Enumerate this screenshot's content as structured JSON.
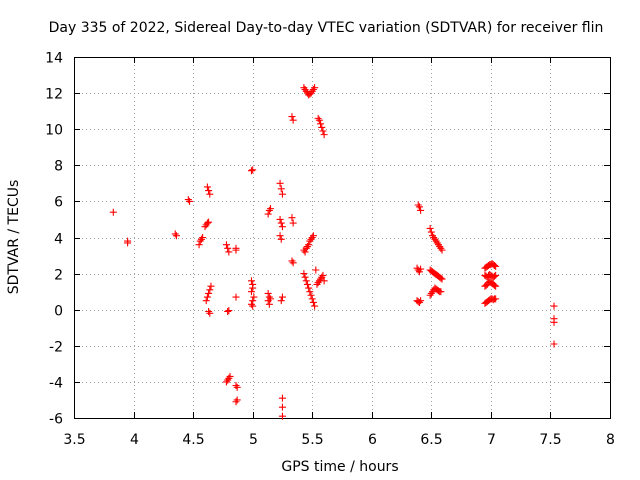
{
  "chart_data": {
    "type": "scatter",
    "title": "Day 335 of 2022, Sidereal Day-to-day VTEC variation (SDTVAR) for receiver flin",
    "xlabel": "GPS time / hours",
    "ylabel": "SDTVAR / TECUs",
    "xlim": [
      3.5,
      8
    ],
    "ylim": [
      -6,
      14
    ],
    "xticks": [
      3.5,
      4,
      4.5,
      5,
      5.5,
      6,
      6.5,
      7,
      7.5,
      8
    ],
    "xtick_labels": [
      "3.5",
      "4",
      "4.5",
      "5",
      "5.5",
      "6",
      "6.5",
      "7",
      "7.5",
      "8"
    ],
    "yticks": [
      -6,
      -4,
      -2,
      0,
      2,
      4,
      6,
      8,
      10,
      12,
      14
    ],
    "ytick_labels": [
      "-6",
      "-4",
      "-2",
      "0",
      "2",
      "4",
      "6",
      "8",
      "10",
      "12",
      "14"
    ],
    "grid": true,
    "marker": "plus",
    "color": "#ff0000",
    "series": [
      {
        "name": "SDTVAR",
        "points": [
          [
            3.83,
            5.4
          ],
          [
            3.95,
            3.8
          ],
          [
            3.95,
            3.7
          ],
          [
            4.35,
            4.2
          ],
          [
            4.36,
            4.1
          ],
          [
            4.46,
            6.1
          ],
          [
            4.47,
            6.0
          ],
          [
            4.55,
            3.6
          ],
          [
            4.56,
            3.8
          ],
          [
            4.57,
            3.9
          ],
          [
            4.58,
            4.0
          ],
          [
            4.6,
            4.6
          ],
          [
            4.61,
            4.7
          ],
          [
            4.62,
            4.8
          ],
          [
            4.63,
            4.85
          ],
          [
            4.62,
            6.8
          ],
          [
            4.63,
            6.6
          ],
          [
            4.64,
            6.4
          ],
          [
            4.61,
            0.5
          ],
          [
            4.62,
            0.7
          ],
          [
            4.63,
            0.9
          ],
          [
            4.64,
            1.1
          ],
          [
            4.65,
            1.3
          ],
          [
            4.63,
            -0.1
          ],
          [
            4.64,
            -0.2
          ],
          [
            4.79,
            -0.1
          ],
          [
            4.8,
            -0.05
          ],
          [
            4.78,
            3.6
          ],
          [
            4.79,
            3.4
          ],
          [
            4.8,
            3.2
          ],
          [
            4.86,
            3.4
          ],
          [
            4.86,
            3.3
          ],
          [
            4.78,
            -4.0
          ],
          [
            4.79,
            -3.9
          ],
          [
            4.8,
            -3.8
          ],
          [
            4.81,
            -3.7
          ],
          [
            4.86,
            -4.2
          ],
          [
            4.87,
            -4.3
          ],
          [
            4.86,
            -5.1
          ],
          [
            4.87,
            -5.0
          ],
          [
            4.86,
            0.7
          ],
          [
            4.99,
            7.7
          ],
          [
            5.0,
            7.75
          ],
          [
            4.99,
            1.6
          ],
          [
            5.0,
            1.4
          ],
          [
            5.0,
            1.2
          ],
          [
            4.99,
            1.0
          ],
          [
            5.01,
            0.7
          ],
          [
            5.0,
            0.5
          ],
          [
            4.99,
            0.3
          ],
          [
            5.0,
            0.2
          ],
          [
            5.13,
            5.3
          ],
          [
            5.14,
            5.5
          ],
          [
            5.15,
            5.6
          ],
          [
            5.13,
            0.9
          ],
          [
            5.14,
            0.7
          ],
          [
            5.13,
            0.5
          ],
          [
            5.14,
            0.3
          ],
          [
            5.15,
            0.6
          ],
          [
            5.23,
            7.0
          ],
          [
            5.24,
            6.7
          ],
          [
            5.25,
            6.4
          ],
          [
            5.23,
            5.0
          ],
          [
            5.24,
            4.8
          ],
          [
            5.25,
            4.6
          ],
          [
            5.23,
            4.1
          ],
          [
            5.24,
            3.9
          ],
          [
            5.24,
            0.5
          ],
          [
            5.25,
            0.7
          ],
          [
            5.25,
            -4.9
          ],
          [
            5.25,
            -5.4
          ],
          [
            5.25,
            -5.9
          ],
          [
            5.33,
            10.7
          ],
          [
            5.34,
            10.5
          ],
          [
            5.33,
            5.1
          ],
          [
            5.34,
            4.8
          ],
          [
            5.33,
            2.7
          ],
          [
            5.34,
            2.6
          ],
          [
            5.43,
            12.3
          ],
          [
            5.44,
            12.2
          ],
          [
            5.45,
            12.1
          ],
          [
            5.46,
            12.0
          ],
          [
            5.47,
            11.9
          ],
          [
            5.48,
            11.95
          ],
          [
            5.49,
            12.0
          ],
          [
            5.5,
            12.1
          ],
          [
            5.51,
            12.2
          ],
          [
            5.52,
            12.3
          ],
          [
            5.55,
            10.6
          ],
          [
            5.56,
            10.5
          ],
          [
            5.57,
            10.3
          ],
          [
            5.58,
            10.1
          ],
          [
            5.59,
            9.9
          ],
          [
            5.6,
            9.7
          ],
          [
            5.43,
            3.3
          ],
          [
            5.44,
            3.2
          ],
          [
            5.45,
            3.4
          ],
          [
            5.46,
            3.5
          ],
          [
            5.47,
            3.6
          ],
          [
            5.48,
            3.8
          ],
          [
            5.49,
            3.9
          ],
          [
            5.5,
            4.0
          ],
          [
            5.51,
            4.1
          ],
          [
            5.43,
            2.0
          ],
          [
            5.44,
            1.8
          ],
          [
            5.45,
            1.6
          ],
          [
            5.46,
            1.4
          ],
          [
            5.47,
            1.2
          ],
          [
            5.48,
            1.0
          ],
          [
            5.49,
            0.8
          ],
          [
            5.5,
            0.6
          ],
          [
            5.51,
            0.4
          ],
          [
            5.52,
            0.2
          ],
          [
            5.53,
            2.2
          ],
          [
            5.54,
            1.4
          ],
          [
            5.55,
            1.5
          ],
          [
            5.56,
            1.6
          ],
          [
            5.57,
            1.7
          ],
          [
            5.58,
            1.8
          ],
          [
            5.59,
            1.9
          ],
          [
            5.6,
            1.6
          ],
          [
            6.39,
            5.8
          ],
          [
            6.4,
            5.7
          ],
          [
            6.41,
            5.5
          ],
          [
            6.38,
            2.3
          ],
          [
            6.39,
            2.2
          ],
          [
            6.4,
            2.1
          ],
          [
            6.41,
            2.25
          ],
          [
            6.38,
            0.5
          ],
          [
            6.39,
            0.45
          ],
          [
            6.4,
            0.4
          ],
          [
            6.41,
            0.5
          ],
          [
            6.49,
            4.5
          ],
          [
            6.5,
            4.3
          ],
          [
            6.51,
            4.1
          ],
          [
            6.52,
            4.0
          ],
          [
            6.53,
            3.9
          ],
          [
            6.54,
            3.8
          ],
          [
            6.55,
            3.7
          ],
          [
            6.56,
            3.6
          ],
          [
            6.57,
            3.5
          ],
          [
            6.58,
            3.4
          ],
          [
            6.59,
            3.3
          ],
          [
            6.49,
            2.2
          ],
          [
            6.5,
            2.15
          ],
          [
            6.51,
            2.1
          ],
          [
            6.52,
            2.05
          ],
          [
            6.53,
            2.0
          ],
          [
            6.54,
            1.95
          ],
          [
            6.55,
            1.9
          ],
          [
            6.56,
            1.85
          ],
          [
            6.57,
            1.8
          ],
          [
            6.58,
            1.75
          ],
          [
            6.59,
            1.7
          ],
          [
            6.49,
            0.8
          ],
          [
            6.5,
            0.9
          ],
          [
            6.51,
            1.0
          ],
          [
            6.52,
            1.1
          ],
          [
            6.53,
            1.2
          ],
          [
            6.54,
            1.15
          ],
          [
            6.55,
            1.1
          ],
          [
            6.56,
            1.05
          ],
          [
            6.57,
            1.0
          ],
          [
            6.58,
            1.0
          ],
          [
            6.95,
            2.3
          ],
          [
            6.96,
            2.35
          ],
          [
            6.97,
            2.4
          ],
          [
            6.98,
            2.45
          ],
          [
            6.99,
            2.5
          ],
          [
            7.0,
            2.5
          ],
          [
            7.01,
            2.55
          ],
          [
            7.02,
            2.5
          ],
          [
            7.03,
            2.45
          ],
          [
            7.04,
            2.4
          ],
          [
            6.95,
            1.9
          ],
          [
            6.96,
            1.85
          ],
          [
            6.97,
            1.8
          ],
          [
            6.98,
            1.9
          ],
          [
            6.99,
            1.95
          ],
          [
            7.0,
            1.9
          ],
          [
            7.01,
            1.85
          ],
          [
            7.02,
            1.8
          ],
          [
            7.03,
            1.85
          ],
          [
            7.04,
            1.9
          ],
          [
            6.95,
            1.3
          ],
          [
            6.96,
            1.35
          ],
          [
            6.97,
            1.4
          ],
          [
            6.98,
            1.5
          ],
          [
            6.99,
            1.55
          ],
          [
            7.0,
            1.5
          ],
          [
            7.01,
            1.45
          ],
          [
            7.02,
            1.4
          ],
          [
            7.03,
            1.35
          ],
          [
            7.04,
            1.3
          ],
          [
            6.95,
            0.35
          ],
          [
            6.96,
            0.4
          ],
          [
            6.97,
            0.45
          ],
          [
            6.98,
            0.5
          ],
          [
            6.99,
            0.55
          ],
          [
            7.0,
            0.6
          ],
          [
            7.01,
            0.6
          ],
          [
            7.02,
            0.55
          ],
          [
            7.03,
            0.6
          ],
          [
            7.04,
            0.6
          ],
          [
            7.53,
            0.2
          ],
          [
            7.53,
            -0.5
          ],
          [
            7.53,
            -0.7
          ],
          [
            7.53,
            -1.9
          ]
        ]
      }
    ]
  }
}
